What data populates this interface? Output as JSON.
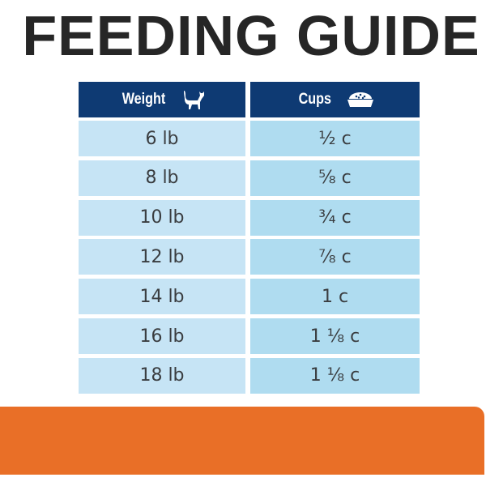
{
  "title": "FEEDING GUIDE",
  "table": {
    "headers": [
      {
        "label": "Weight",
        "icon": "cat-icon"
      },
      {
        "label": "Cups",
        "icon": "food-bowl-icon"
      }
    ],
    "rows": [
      {
        "weight": "6 lb",
        "cups": "½ c"
      },
      {
        "weight": "8 lb",
        "cups": "⅝ c"
      },
      {
        "weight": "10 lb",
        "cups": "¾ c"
      },
      {
        "weight": "12 lb",
        "cups": "⅞ c"
      },
      {
        "weight": "14 lb",
        "cups": "1 c"
      },
      {
        "weight": "16 lb",
        "cups": "1 ⅛ c"
      },
      {
        "weight": "18 lb",
        "cups": "1 ⅛ c"
      }
    ]
  },
  "colors": {
    "header": "#0e3a73",
    "weight_cell": "#c6e4f5",
    "cups_cell": "#afdcf0",
    "banner": "#e96f27"
  }
}
